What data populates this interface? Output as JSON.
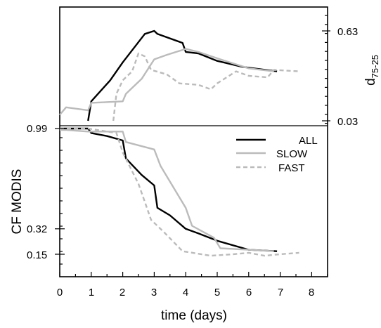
{
  "chart_data": [
    {
      "panel": "top",
      "type": "line",
      "ylabel": "d",
      "ylabel_sub": "75-25",
      "yticks": [
        "0.63",
        "0.03"
      ],
      "ylim": [
        0.03,
        0.63
      ],
      "xlim": [
        0,
        8.5
      ],
      "series": [
        {
          "name": "ALL",
          "color": "#000000",
          "dash": "solid",
          "points": [
            [
              0.9,
              0.03
            ],
            [
              1.0,
              0.16
            ],
            [
              1.6,
              0.3
            ],
            [
              2.0,
              0.42
            ],
            [
              2.7,
              0.61
            ],
            [
              3.0,
              0.63
            ],
            [
              3.1,
              0.61
            ],
            [
              3.9,
              0.55
            ],
            [
              4.0,
              0.49
            ],
            [
              4.4,
              0.48
            ],
            [
              5.0,
              0.43
            ],
            [
              5.8,
              0.39
            ],
            [
              6.9,
              0.36
            ]
          ]
        },
        {
          "name": "SLOW",
          "color": "#bbbbbb",
          "dash": "solid",
          "points": [
            [
              0.0,
              0.07
            ],
            [
              0.2,
              0.12
            ],
            [
              0.9,
              0.1
            ],
            [
              1.0,
              0.15
            ],
            [
              2.0,
              0.16
            ],
            [
              2.1,
              0.21
            ],
            [
              2.6,
              0.31
            ],
            [
              3.0,
              0.44
            ],
            [
              3.4,
              0.47
            ],
            [
              4.0,
              0.51
            ],
            [
              4.4,
              0.49
            ],
            [
              5.1,
              0.44
            ],
            [
              6.0,
              0.38
            ],
            [
              6.8,
              0.36
            ]
          ]
        },
        {
          "name": "FAST",
          "color": "#bbbbbb",
          "dash": "dashed",
          "points": [
            [
              1.7,
              0.03
            ],
            [
              1.8,
              0.21
            ],
            [
              2.0,
              0.3
            ],
            [
              2.3,
              0.36
            ],
            [
              2.5,
              0.48
            ],
            [
              2.7,
              0.46
            ],
            [
              2.9,
              0.37
            ],
            [
              3.4,
              0.34
            ],
            [
              3.8,
              0.28
            ],
            [
              4.4,
              0.27
            ],
            [
              4.8,
              0.24
            ],
            [
              5.0,
              0.28
            ],
            [
              5.6,
              0.36
            ],
            [
              6.0,
              0.33
            ],
            [
              6.6,
              0.32
            ],
            [
              6.8,
              0.37
            ],
            [
              7.6,
              0.36
            ]
          ]
        }
      ]
    },
    {
      "panel": "bottom",
      "type": "line",
      "ylabel": "CF MODIS",
      "yticks": [
        "0.99",
        "0.32",
        "0.15"
      ],
      "ylim": [
        0.15,
        0.99
      ],
      "xlabel": "time (days)",
      "xticks": [
        "0",
        "1",
        "2",
        "3",
        "4",
        "5",
        "6",
        "7",
        "8"
      ],
      "xlim": [
        0,
        8.5
      ],
      "series": [
        {
          "name": "ALL",
          "color": "#000000",
          "dash": "solid",
          "points": [
            [
              0.0,
              0.99
            ],
            [
              0.2,
              0.99
            ],
            [
              0.9,
              0.99
            ],
            [
              1.0,
              0.96
            ],
            [
              1.5,
              0.94
            ],
            [
              2.0,
              0.91
            ],
            [
              2.1,
              0.79
            ],
            [
              2.6,
              0.68
            ],
            [
              3.0,
              0.61
            ],
            [
              3.1,
              0.46
            ],
            [
              3.5,
              0.41
            ],
            [
              4.0,
              0.32
            ],
            [
              4.4,
              0.29
            ],
            [
              5.0,
              0.24
            ],
            [
              6.0,
              0.18
            ],
            [
              6.9,
              0.17
            ]
          ]
        },
        {
          "name": "SLOW",
          "color": "#bbbbbb",
          "dash": "solid",
          "points": [
            [
              0.0,
              0.98
            ],
            [
              0.2,
              0.98
            ],
            [
              0.9,
              0.97
            ],
            [
              2.0,
              0.97
            ],
            [
              2.1,
              0.9
            ],
            [
              3.0,
              0.85
            ],
            [
              3.2,
              0.74
            ],
            [
              4.0,
              0.46
            ],
            [
              4.2,
              0.34
            ],
            [
              4.9,
              0.26
            ],
            [
              5.1,
              0.19
            ],
            [
              6.0,
              0.18
            ],
            [
              6.8,
              0.17
            ]
          ]
        },
        {
          "name": "FAST",
          "color": "#bbbbbb",
          "dash": "dashed",
          "points": [
            [
              0.0,
              0.99
            ],
            [
              0.9,
              0.99
            ],
            [
              1.8,
              0.96
            ],
            [
              2.0,
              0.83
            ],
            [
              2.5,
              0.62
            ],
            [
              2.7,
              0.5
            ],
            [
              2.9,
              0.38
            ],
            [
              3.3,
              0.3
            ],
            [
              3.9,
              0.17
            ],
            [
              4.8,
              0.14
            ],
            [
              5.5,
              0.15
            ],
            [
              6.0,
              0.16
            ],
            [
              6.5,
              0.14
            ],
            [
              7.0,
              0.15
            ],
            [
              7.6,
              0.16
            ]
          ]
        }
      ]
    }
  ],
  "legend": {
    "position": "upper-right of lower panel",
    "entries": [
      {
        "label": "ALL",
        "color": "#000000",
        "dash": "solid"
      },
      {
        "label": "SLOW",
        "color": "#bbbbbb",
        "dash": "solid"
      },
      {
        "label": "FAST",
        "color": "#bbbbbb",
        "dash": "dashed"
      }
    ]
  }
}
